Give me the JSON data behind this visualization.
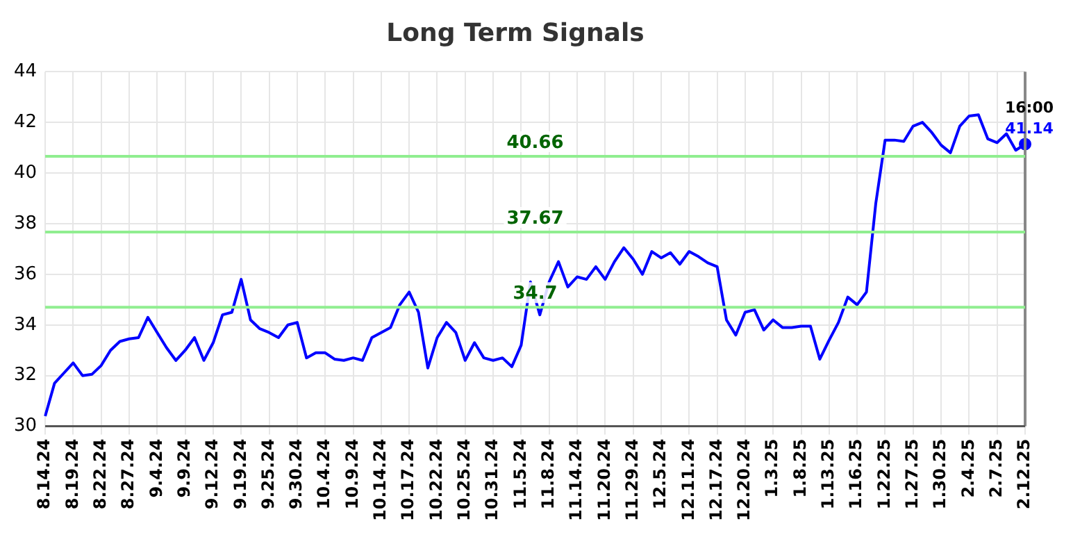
{
  "chart_data": {
    "type": "line",
    "title": "Long Term Signals",
    "categories": [
      "8.14.24",
      null,
      null,
      "8.19.24",
      null,
      null,
      "8.22.24",
      null,
      null,
      "8.27.24",
      null,
      null,
      "9.4.24",
      null,
      null,
      "9.9.24",
      null,
      null,
      "9.12.24",
      null,
      null,
      "9.19.24",
      null,
      null,
      "9.25.24",
      null,
      null,
      "9.30.24",
      null,
      null,
      "10.4.24",
      null,
      null,
      "10.9.24",
      null,
      null,
      "10.14.24",
      null,
      null,
      "10.17.24",
      null,
      null,
      "10.22.24",
      null,
      null,
      "10.25.24",
      null,
      null,
      "10.31.24",
      null,
      null,
      "11.5.24",
      null,
      null,
      "11.8.24",
      null,
      null,
      "11.14.24",
      null,
      null,
      "11.20.24",
      null,
      null,
      "11.29.24",
      null,
      null,
      "12.5.24",
      null,
      null,
      "12.11.24",
      null,
      null,
      "12.17.24",
      null,
      null,
      "12.20.24",
      null,
      null,
      "1.3.25",
      null,
      null,
      "1.8.25",
      null,
      null,
      "1.13.25",
      null,
      null,
      "1.16.25",
      null,
      null,
      "1.22.25",
      null,
      null,
      "1.27.25",
      null,
      null,
      "1.30.25",
      null,
      null,
      "2.4.25",
      null,
      null,
      "2.7.25",
      null,
      null,
      "2.12.25"
    ],
    "series": [
      {
        "type": "line",
        "color": "#0000ff",
        "marker": "none",
        "values": [
          30.4,
          31.7,
          32.1,
          32.5,
          32.0,
          32.05,
          32.4,
          33.0,
          33.35,
          33.45,
          33.5,
          34.3,
          33.7,
          33.1,
          32.6,
          33.0,
          33.5,
          32.6,
          33.3,
          34.4,
          34.5,
          35.8,
          34.2,
          33.85,
          33.7,
          33.5,
          34.0,
          34.1,
          32.7,
          32.9,
          32.9,
          32.65,
          32.6,
          32.7,
          32.6,
          33.5,
          33.7,
          33.9,
          34.8,
          35.3,
          34.5,
          32.3,
          33.5,
          34.1,
          33.7,
          32.6,
          33.3,
          32.7,
          32.6,
          32.7,
          32.35,
          33.2,
          35.7,
          34.4,
          35.7,
          36.5,
          35.5,
          35.9,
          35.8,
          36.3,
          35.8,
          36.5,
          37.05,
          36.6,
          36.0,
          36.9,
          36.65,
          36.85,
          36.4,
          36.9,
          36.7,
          36.45,
          36.3,
          34.2,
          33.6,
          34.5,
          34.6,
          33.8,
          34.2,
          33.9,
          33.9,
          33.95,
          33.95,
          32.65,
          33.4,
          34.1,
          35.1,
          34.8,
          35.3,
          38.8,
          41.3,
          41.3,
          41.25,
          41.85,
          42.0,
          41.6,
          41.1,
          40.8,
          41.85,
          42.25,
          42.3,
          41.35,
          41.2,
          41.55,
          40.9,
          41.14
        ]
      },
      {
        "type": "scatter",
        "color": "#0000ff",
        "marker": "circle",
        "x": [
          "2.12.25"
        ],
        "values": [
          41.14
        ],
        "value_labels": [
          "41.14"
        ]
      }
    ],
    "ylim": [
      30,
      44
    ],
    "yticks": [
      30,
      32,
      34,
      36,
      38,
      40,
      42,
      44
    ],
    "grid": true,
    "ref_lines": [
      {
        "axis": "y",
        "value": 40.66,
        "label": "40.66",
        "color": "#90ee90"
      },
      {
        "axis": "y",
        "value": 37.67,
        "label": "37.67",
        "color": "#90ee90"
      },
      {
        "axis": "y",
        "value": 34.7,
        "label": "34.7",
        "color": "#90ee90"
      }
    ],
    "annotations": [
      {
        "text": "16:00",
        "x": "2.12.25",
        "y": 41.14
      }
    ]
  }
}
